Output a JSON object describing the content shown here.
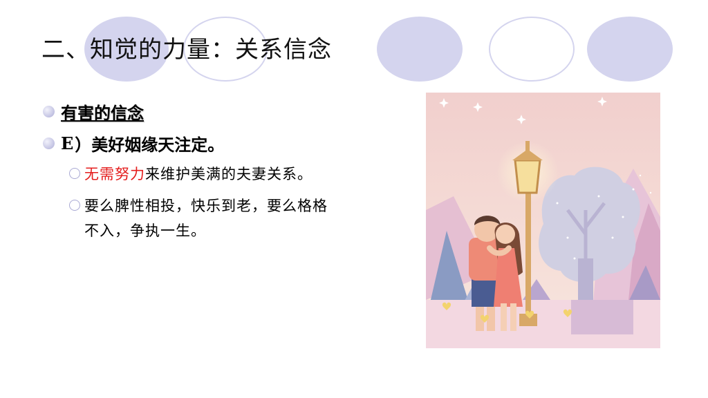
{
  "slide": {
    "title": "二、知觉的力量：关系信念",
    "bullets": [
      {
        "text": "有害的信念"
      },
      {
        "prefix": "E",
        "text": "）美好姻缘天注定。"
      }
    ],
    "sub_bullets": [
      {
        "highlight": "无需努力",
        "rest": "来维护美满的夫妻关系。"
      },
      {
        "line1": "要么脾性相投，快乐到老，要么格格",
        "line2": "不入，争执一生。"
      }
    ]
  },
  "illustration": {
    "name": "couple-under-streetlamp"
  },
  "colors": {
    "accent_red": "#e41c1c",
    "lavender": "#d4d4ee"
  }
}
